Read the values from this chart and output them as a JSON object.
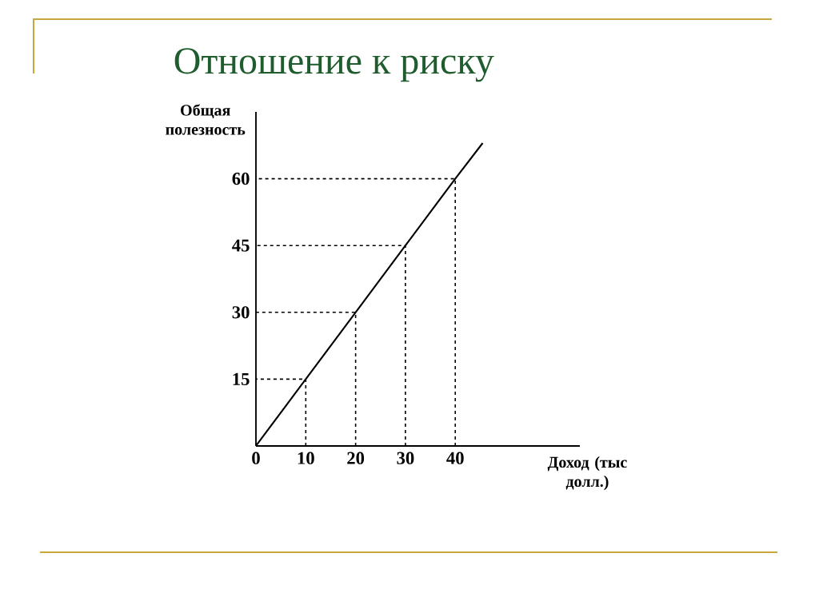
{
  "chart_data": {
    "type": "line",
    "title": "Отношение к риску",
    "xlabel": "Доход (тыс долл.)",
    "ylabel": "Общая полезность",
    "xlim": [
      0,
      65
    ],
    "ylim": [
      0,
      75
    ],
    "xticks": [
      0,
      10,
      20,
      30,
      40
    ],
    "yticks": [
      15,
      30,
      45,
      60
    ],
    "series": [
      {
        "color": "#000000",
        "line_style": "solid",
        "x": [
          0,
          10,
          20,
          30,
          40,
          45.5
        ],
        "values": [
          0,
          15,
          30,
          45,
          60,
          68
        ]
      },
      {
        "color": "#000000",
        "line_style": "dashed",
        "x": [
          10,
          10,
          0
        ],
        "values": [
          0,
          15,
          15
        ]
      },
      {
        "color": "#000000",
        "line_style": "dashed",
        "x": [
          20,
          20,
          0
        ],
        "values": [
          0,
          30,
          30
        ]
      },
      {
        "color": "#000000",
        "line_style": "dashed",
        "x": [
          30,
          30,
          0
        ],
        "values": [
          0,
          45,
          45
        ]
      },
      {
        "color": "#000000",
        "line_style": "dashed",
        "x": [
          40,
          40,
          0
        ],
        "values": [
          0,
          60,
          60
        ]
      }
    ]
  }
}
